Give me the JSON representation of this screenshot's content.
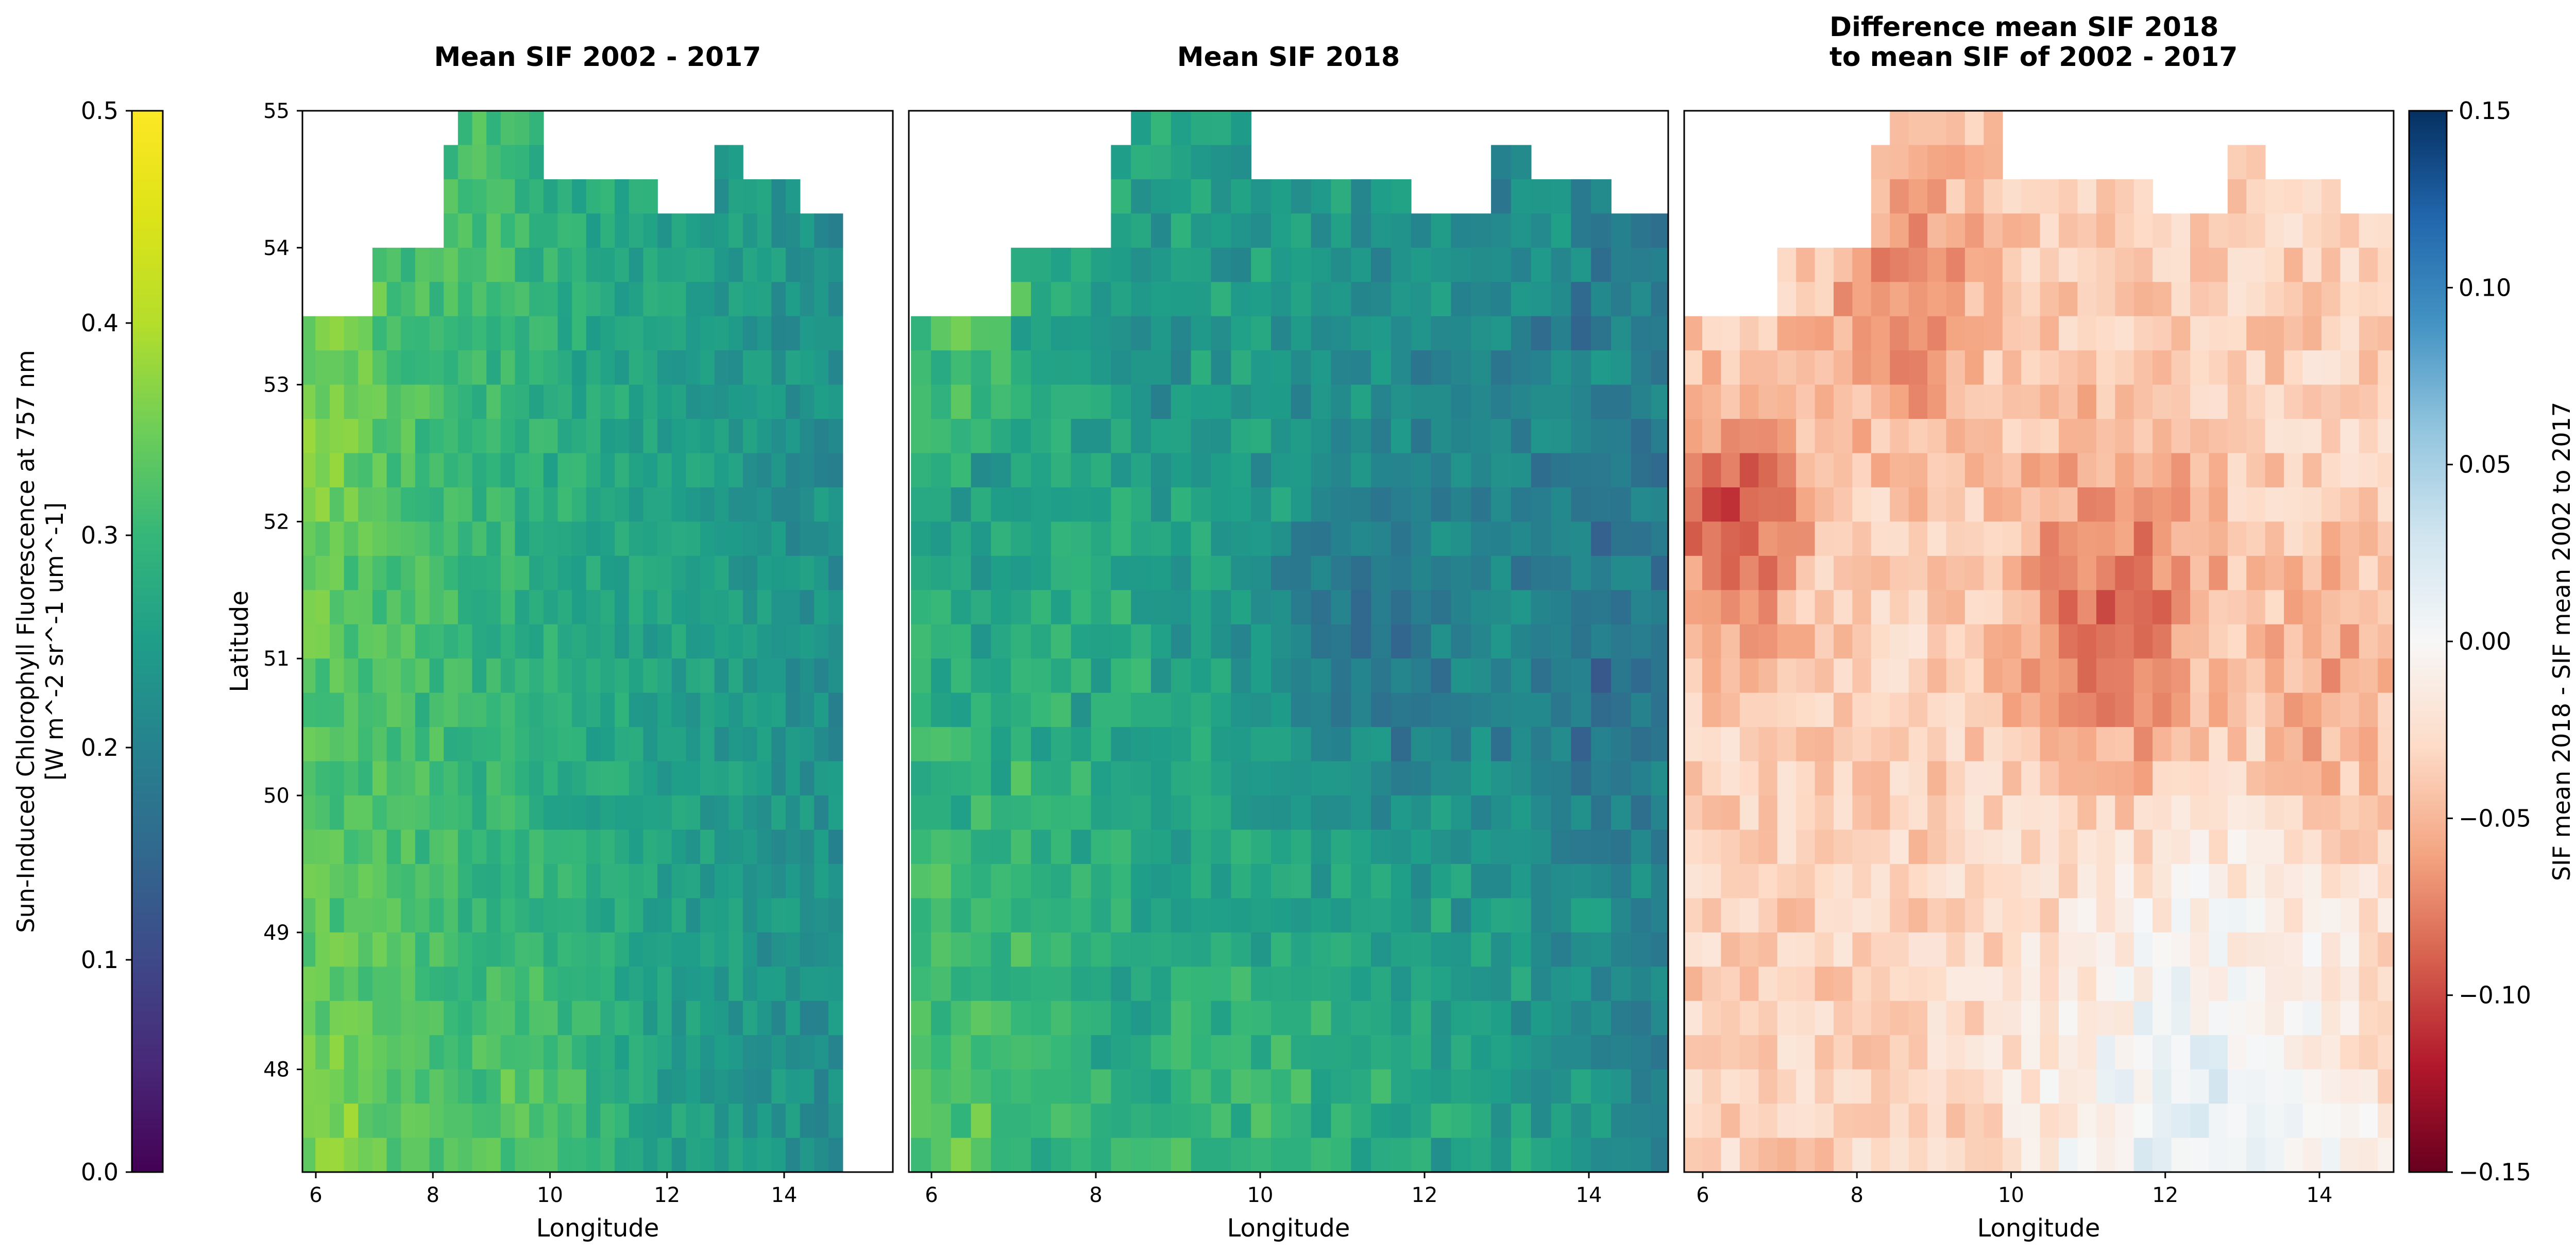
{
  "figure": {
    "left_colorbar": {
      "label_line1": "Sun-Induced Chlorophyll Fluorescence at 757 nm",
      "label_line2": "[W m^-2 sr^-1 um^-1]",
      "ticks": [
        "0.0",
        "0.1",
        "0.2",
        "0.3",
        "0.4",
        "0.5"
      ],
      "range": [
        0.0,
        0.5
      ],
      "colormap": "viridis"
    },
    "right_colorbar": {
      "label": "SIF mean 2018 - SIF mean 2002 to 2017",
      "ticks": [
        "0.15",
        "0.10",
        "0.05",
        "0.00",
        "−0.05",
        "−0.10",
        "−0.15"
      ],
      "range": [
        -0.15,
        0.15
      ],
      "colormap": "RdBu"
    },
    "y_ticks": [
      "55",
      "54",
      "53",
      "52",
      "51",
      "50",
      "49",
      "48"
    ],
    "ylabel": "Latitude",
    "x_ticks": [
      "6",
      "8",
      "10",
      "12",
      "14"
    ],
    "xlabel": "Longitude",
    "panels": [
      {
        "title_line1": "Mean SIF 2002 - 2017",
        "title_line2": ""
      },
      {
        "title_line1": "Mean SIF 2018",
        "title_line2": ""
      },
      {
        "title_line1": "Difference mean SIF 2018",
        "title_line2": "to mean SIF of 2002 - 2017"
      }
    ]
  },
  "chart_data": [
    {
      "type": "heatmap",
      "title": "Mean SIF 2002 - 2017",
      "xlabel": "Longitude",
      "ylabel": "Latitude",
      "xlim": [
        5.75,
        15.0
      ],
      "ylim": [
        47.25,
        55.0
      ],
      "color_range": [
        0.0,
        0.5
      ],
      "colormap": "viridis",
      "grid": false,
      "description_values": "approx. 0.22-0.45; higher (~0.38-0.45) in southwest and northwest corners, ~0.24-0.30 in the east"
    },
    {
      "type": "heatmap",
      "title": "Mean SIF 2018",
      "xlabel": "Longitude",
      "ylabel": "Latitude",
      "xlim": [
        5.75,
        15.0
      ],
      "ylim": [
        47.25,
        55.0
      ],
      "color_range": [
        0.0,
        0.5
      ],
      "colormap": "viridis",
      "grid": false,
      "description_values": "approx. 0.20-0.42; lowest (~0.20-0.24) in the northeast and center, higher in southwest"
    },
    {
      "type": "heatmap",
      "title": "Difference mean SIF 2018 to mean SIF of 2002 - 2017",
      "xlabel": "Longitude",
      "ylabel": "Latitude",
      "xlim": [
        5.75,
        15.0
      ],
      "ylim": [
        47.25,
        55.0
      ],
      "color_range": [
        -0.15,
        0.15
      ],
      "colormap": "RdBu",
      "grid": false,
      "description_values": "mostly negative -0.01 to -0.12; strongest decrease (~-0.14) near 6.5E 52N; slightly positive (~+0.02) in southeast near 47.5N"
    }
  ]
}
